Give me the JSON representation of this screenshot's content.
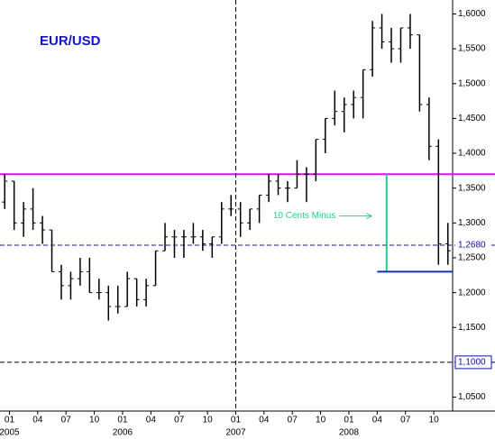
{
  "chart_data": {
    "type": "ohlc",
    "title": "EUR/USD",
    "x": [
      "2004-12",
      "2005-01",
      "2005-02",
      "2005-03",
      "2005-04",
      "2005-05",
      "2005-06",
      "2005-07",
      "2005-08",
      "2005-09",
      "2005-10",
      "2005-11",
      "2005-12",
      "2006-01",
      "2006-02",
      "2006-03",
      "2006-04",
      "2006-05",
      "2006-06",
      "2006-07",
      "2006-08",
      "2006-09",
      "2006-10",
      "2006-11",
      "2006-12",
      "2007-01",
      "2007-02",
      "2007-03",
      "2007-04",
      "2007-05",
      "2007-06",
      "2007-07",
      "2007-08",
      "2007-09",
      "2007-10",
      "2007-11",
      "2007-12",
      "2008-01",
      "2008-02",
      "2008-03",
      "2008-04",
      "2008-05",
      "2008-06",
      "2008-07",
      "2008-08",
      "2008-09",
      "2008-10",
      "2008-11"
    ],
    "open": [
      1.33,
      1.36,
      1.3,
      1.32,
      1.3,
      1.29,
      1.23,
      1.21,
      1.22,
      1.23,
      1.2,
      1.2,
      1.18,
      1.18,
      1.22,
      1.19,
      1.21,
      1.26,
      1.28,
      1.28,
      1.28,
      1.28,
      1.27,
      1.28,
      1.32,
      1.32,
      1.3,
      1.32,
      1.34,
      1.36,
      1.35,
      1.35,
      1.37,
      1.37,
      1.42,
      1.45,
      1.46,
      1.47,
      1.48,
      1.52,
      1.58,
      1.56,
      1.55,
      1.58,
      1.57,
      1.47,
      1.41,
      1.27
    ],
    "high": [
      1.37,
      1.36,
      1.33,
      1.35,
      1.31,
      1.29,
      1.24,
      1.23,
      1.25,
      1.25,
      1.22,
      1.21,
      1.21,
      1.23,
      1.22,
      1.22,
      1.26,
      1.3,
      1.29,
      1.29,
      1.3,
      1.29,
      1.28,
      1.33,
      1.34,
      1.33,
      1.32,
      1.34,
      1.37,
      1.37,
      1.36,
      1.39,
      1.38,
      1.42,
      1.45,
      1.49,
      1.48,
      1.49,
      1.52,
      1.59,
      1.6,
      1.58,
      1.58,
      1.6,
      1.57,
      1.48,
      1.42,
      1.3
    ],
    "low": [
      1.32,
      1.29,
      1.28,
      1.29,
      1.27,
      1.23,
      1.19,
      1.19,
      1.21,
      1.2,
      1.19,
      1.16,
      1.17,
      1.18,
      1.18,
      1.18,
      1.21,
      1.26,
      1.25,
      1.25,
      1.27,
      1.26,
      1.25,
      1.27,
      1.31,
      1.28,
      1.29,
      1.3,
      1.33,
      1.34,
      1.33,
      1.35,
      1.33,
      1.36,
      1.4,
      1.44,
      1.43,
      1.45,
      1.45,
      1.51,
      1.55,
      1.53,
      1.53,
      1.55,
      1.46,
      1.39,
      1.24,
      1.24
    ],
    "close": [
      1.36,
      1.3,
      1.32,
      1.3,
      1.29,
      1.23,
      1.21,
      1.22,
      1.23,
      1.2,
      1.2,
      1.18,
      1.18,
      1.22,
      1.19,
      1.21,
      1.26,
      1.28,
      1.28,
      1.28,
      1.28,
      1.27,
      1.28,
      1.32,
      1.32,
      1.3,
      1.32,
      1.34,
      1.36,
      1.35,
      1.35,
      1.37,
      1.37,
      1.42,
      1.45,
      1.46,
      1.47,
      1.48,
      1.52,
      1.58,
      1.56,
      1.55,
      1.58,
      1.57,
      1.47,
      1.41,
      1.27,
      1.26
    ],
    "color": "#000000",
    "xlim": [
      "2004-12",
      "2008-12"
    ],
    "xticks": [
      {
        "value": "2005-01",
        "label": "01"
      },
      {
        "value": "2005-04",
        "label": "04"
      },
      {
        "value": "2005-07",
        "label": "07"
      },
      {
        "value": "2005-10",
        "label": "10"
      },
      {
        "value": "2006-01",
        "label": "01"
      },
      {
        "value": "2006-04",
        "label": "04"
      },
      {
        "value": "2006-07",
        "label": "07"
      },
      {
        "value": "2006-10",
        "label": "10"
      },
      {
        "value": "2007-01",
        "label": "01"
      },
      {
        "value": "2007-04",
        "label": "04"
      },
      {
        "value": "2007-07",
        "label": "07"
      },
      {
        "value": "2007-10",
        "label": "10"
      },
      {
        "value": "2008-01",
        "label": "01"
      },
      {
        "value": "2008-04",
        "label": "04"
      },
      {
        "value": "2008-07",
        "label": "07"
      },
      {
        "value": "2008-10",
        "label": "10"
      }
    ],
    "year_labels": [
      {
        "value": "2005-01",
        "label": "2005"
      },
      {
        "value": "2006-01",
        "label": "2006"
      },
      {
        "value": "2007-01",
        "label": "2007"
      },
      {
        "value": "2008-01",
        "label": "2008"
      }
    ],
    "ylim": [
      1.03,
      1.62
    ],
    "yticks": [
      {
        "value": 1.6,
        "label": "1,6000"
      },
      {
        "value": 1.55,
        "label": "1,5500"
      },
      {
        "value": 1.5,
        "label": "1,5000"
      },
      {
        "value": 1.45,
        "label": "1,4500"
      },
      {
        "value": 1.4,
        "label": "1,4000"
      },
      {
        "value": 1.35,
        "label": "1,3500"
      },
      {
        "value": 1.3,
        "label": "1,3000"
      },
      {
        "value": 1.25,
        "label": "1,2500"
      },
      {
        "value": 1.2,
        "label": "1,2000"
      },
      {
        "value": 1.15,
        "label": "1,1500"
      },
      {
        "value": 1.05,
        "label": "1,0500"
      }
    ],
    "reference_lines": [
      {
        "value": 1.37,
        "color": "#e010e0",
        "style": "solid"
      },
      {
        "value": 1.268,
        "label": "1,2680",
        "color": "#1010a0",
        "style": "dashed"
      },
      {
        "value": 1.1,
        "label": "1,1000",
        "color": "#000000",
        "style": "dashed"
      }
    ],
    "vertical_line": {
      "x": "2007-01",
      "color": "#000000"
    },
    "measure": {
      "x": "2008-05",
      "from": 1.37,
      "to": 1.23,
      "color": "#20d090"
    },
    "support": {
      "value": 1.23,
      "from": "2008-04",
      "to": "2008-12",
      "color": "#1030c0"
    },
    "annotation": {
      "text": "10 Cents Minus",
      "x": "2008-04",
      "y": 1.31,
      "color": "#20d090"
    }
  }
}
